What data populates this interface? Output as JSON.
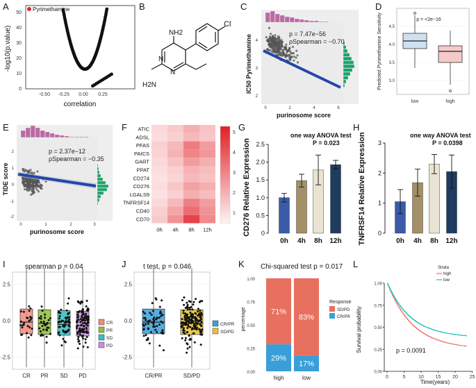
{
  "panels": {
    "A": {
      "label": "A",
      "highlight": "Pyrimethamine",
      "xlabel": "correlation",
      "ylabel": "-log10(p.value)",
      "xticks": [
        "-0.50",
        "-0.25",
        "0.00",
        "0.25"
      ],
      "yticks": [
        "0",
        "10",
        "20",
        "30",
        "40",
        "50"
      ]
    },
    "B": {
      "label": "B",
      "atoms": {
        "nh2_top": "NH2",
        "nh2_left": "H2N",
        "n_top": "N",
        "n_bot": "N",
        "cl": "Cl"
      }
    },
    "C": {
      "label": "C",
      "ylabel": "IC50 Pyrimethamine",
      "xlabel": "purinosome score",
      "p": "p = 7.47e−56",
      "rho": "ρSpearman = −0.70",
      "xticks": [
        "0",
        "2",
        "4",
        "6"
      ],
      "yticks": [
        "2",
        "3",
        "4"
      ]
    },
    "D": {
      "label": "D",
      "ylabel": "Predicted Pyrimethamine Sensitivity",
      "pval": "p = <2e−16",
      "xticks": [
        "low",
        "high"
      ],
      "yticks": [
        "3.0",
        "3.5",
        "4.0",
        "4.5"
      ],
      "colors": {
        "low": "#cfe0f3",
        "high": "#f6c9c9"
      }
    },
    "E": {
      "label": "E",
      "ylabel": "TIDE score",
      "xlabel": "purinosome score",
      "p": "p = 2.37e−12",
      "rho": "ρSpearman = −0.35",
      "xticks": [
        "0",
        "1",
        "2",
        "3"
      ],
      "yticks": [
        "-2",
        "-1",
        "0",
        "1",
        "2"
      ]
    },
    "F": {
      "label": "F",
      "genes": [
        "ATIC",
        "ADSL",
        "PFAS",
        "PAICS",
        "GART",
        "PPAT",
        "CD274",
        "CD276",
        "LGALS9",
        "TNFRSF14",
        "CD40",
        "CD70"
      ],
      "times": [
        "0h",
        "4h",
        "8h",
        "12h"
      ],
      "scale": [
        "5",
        "4",
        "3",
        "2",
        "1"
      ],
      "heat": [
        [
          1.3,
          1.6,
          2.2,
          1.8
        ],
        [
          1.2,
          1.5,
          2.0,
          1.7
        ],
        [
          1.5,
          2.0,
          3.3,
          2.6
        ],
        [
          1.4,
          2.1,
          3.1,
          2.7
        ],
        [
          1.3,
          1.8,
          2.6,
          2.2
        ],
        [
          1.2,
          1.5,
          2.1,
          1.9
        ],
        [
          1.1,
          1.4,
          2.0,
          1.8
        ],
        [
          1.2,
          1.7,
          2.5,
          2.2
        ],
        [
          1.1,
          1.5,
          2.2,
          1.9
        ],
        [
          1.3,
          2.0,
          3.2,
          2.6
        ],
        [
          1.5,
          2.4,
          3.6,
          2.8
        ],
        [
          1.6,
          2.8,
          4.5,
          3.0
        ]
      ]
    },
    "G": {
      "label": "G",
      "test": "one way ANOVA test",
      "p": "P = 0.023",
      "ylabel": "CD276 Relative Expression",
      "categories": [
        "0h",
        "4h",
        "8h",
        "12h"
      ],
      "values": [
        1.0,
        1.48,
        1.78,
        1.93
      ],
      "errors": [
        0.12,
        0.18,
        0.42,
        0.12
      ],
      "colors": [
        "#3b5ba8",
        "#a39066",
        "#e8e3d2",
        "#1f3c60"
      ],
      "yticks": [
        "0",
        "0.5",
        "1.0",
        "1.5",
        "2.0",
        "2.5"
      ],
      "ylim": [
        0,
        2.5
      ]
    },
    "H": {
      "label": "H",
      "test": "one way ANOVA test",
      "p": "P = 0.0398",
      "ylabel": "TNFRSF14 Relative Expression",
      "categories": [
        "0h",
        "4h",
        "8h",
        "12h"
      ],
      "values": [
        1.05,
        1.68,
        2.3,
        2.05
      ],
      "errors": [
        0.4,
        0.45,
        0.32,
        0.55
      ],
      "colors": [
        "#3b5ba8",
        "#a39066",
        "#e8e3d2",
        "#1f3c60"
      ],
      "yticks": [
        "0",
        "1",
        "2",
        "3"
      ],
      "ylim": [
        0,
        3
      ]
    },
    "I": {
      "label": "I",
      "title": "spearman p = 0.04",
      "categories": [
        "CR",
        "PR",
        "SD",
        "PD"
      ],
      "yticks": [
        "-2.5",
        "0.0",
        "2.5"
      ],
      "colors": [
        "#f08a80",
        "#8fbf3a",
        "#33bfc4",
        "#c88ee3"
      ],
      "legend": [
        "CR",
        "PR",
        "SD",
        "PD"
      ]
    },
    "J": {
      "label": "J",
      "title": "t test, p = 0.046",
      "categories": [
        "CR/PR",
        "SD/PD"
      ],
      "yticks": [
        "-2.5",
        "0.0",
        "2.5"
      ],
      "colors": [
        "#3a9fd9",
        "#e8c22e"
      ],
      "legend": [
        "CR/PR",
        "SD/PD"
      ]
    },
    "K": {
      "label": "K",
      "title": "Chi-squared test p = 0.017",
      "ylabel": "percentage",
      "categories": [
        "high",
        "low"
      ],
      "top": [
        71,
        83
      ],
      "bottom": [
        29,
        17
      ],
      "top_labels": [
        "71%",
        "83%"
      ],
      "bottom_labels": [
        "29%",
        "17%"
      ],
      "yticks": [
        "0.00",
        "0.25",
        "0.50",
        "0.75",
        "1.00"
      ],
      "legend_title": "Response",
      "legend": [
        "SD/PD",
        "CR/PR"
      ],
      "colors": [
        "#e8705f",
        "#3a9ed8"
      ]
    },
    "L": {
      "label": "L",
      "legend_title": "Strata",
      "legend": [
        "high",
        "low"
      ],
      "colors": [
        "#f07065",
        "#19c0b8"
      ],
      "ylabel": "Survival probability",
      "xlabel": "Time(years)",
      "p": "p = 0.0091",
      "xticks": [
        "0",
        "5",
        "10",
        "15",
        "20",
        "25"
      ],
      "yticks": [
        "0.00",
        "0.25",
        "0.50",
        "0.75",
        "1.00"
      ]
    }
  }
}
